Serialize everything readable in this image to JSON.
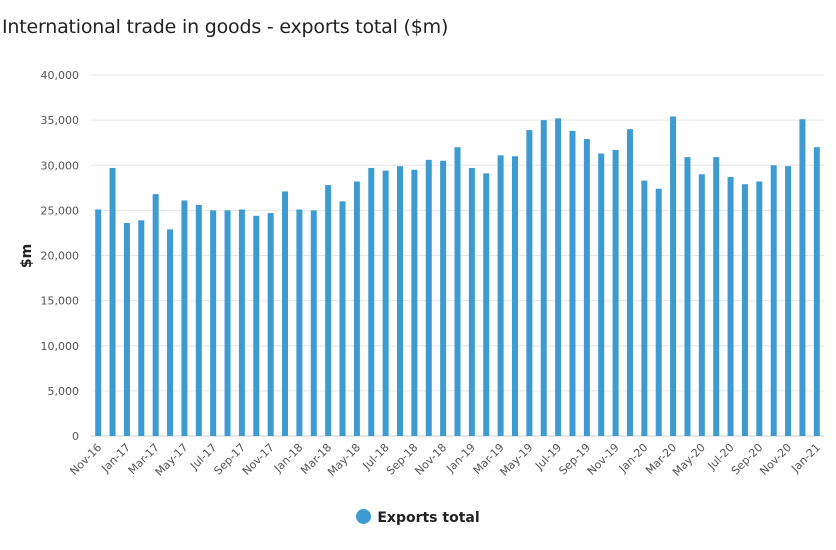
{
  "chart_data": {
    "type": "bar",
    "title": "International trade in goods - exports total ($m)",
    "xlabel": "",
    "ylabel": "$m",
    "ylim": [
      0,
      40000
    ],
    "y_ticks": [
      0,
      5000,
      10000,
      15000,
      20000,
      25000,
      30000,
      35000,
      40000
    ],
    "y_tick_labels": [
      "0",
      "5,000",
      "10,000",
      "15,000",
      "20,000",
      "25,000",
      "30,000",
      "35,000",
      "40,000"
    ],
    "grid": true,
    "legend_position": "bottom",
    "series_color": "#3d9bd1",
    "series": [
      {
        "name": "Exports total",
        "values": [
          25100,
          29700,
          23600,
          23900,
          26800,
          22900,
          26100,
          25600,
          25000,
          25000,
          25100,
          24400,
          24700,
          27100,
          25100,
          25000,
          27800,
          26000,
          28200,
          29700,
          29400,
          29900,
          29500,
          30600,
          30500,
          32000,
          29700,
          29100,
          31100,
          31000,
          33900,
          35000,
          35200,
          33800,
          32900,
          31300,
          31700,
          34000,
          28300,
          27400,
          35400,
          30900,
          29000,
          30900,
          28700,
          27900,
          28200,
          30000,
          29900,
          35100,
          32000
        ]
      }
    ],
    "categories": [
      "Nov-16",
      "Dec-16",
      "Jan-17",
      "Feb-17",
      "Mar-17",
      "Apr-17",
      "May-17",
      "Jun-17",
      "Jul-17",
      "Aug-17",
      "Sep-17",
      "Oct-17",
      "Nov-17",
      "Dec-17",
      "Jan-18",
      "Feb-18",
      "Mar-18",
      "Apr-18",
      "May-18",
      "Jun-18",
      "Jul-18",
      "Aug-18",
      "Sep-18",
      "Oct-18",
      "Nov-18",
      "Dec-18",
      "Jan-19",
      "Feb-19",
      "Mar-19",
      "Apr-19",
      "May-19",
      "Jun-19",
      "Jul-19",
      "Aug-19",
      "Sep-19",
      "Oct-19",
      "Nov-19",
      "Dec-19",
      "Jan-20",
      "Feb-20",
      "Mar-20",
      "Apr-20",
      "May-20",
      "Jun-20",
      "Jul-20",
      "Aug-20",
      "Sep-20",
      "Oct-20",
      "Nov-20",
      "Dec-20",
      "Jan-21"
    ],
    "x_tick_labels": [
      "Nov-16",
      "Jan-17",
      "Mar-17",
      "May-17",
      "Jul-17",
      "Sep-17",
      "Nov-17",
      "Jan-18",
      "Mar-18",
      "May-18",
      "Jul-18",
      "Sep-18",
      "Nov-18",
      "Jan-19",
      "Mar-19",
      "May-19",
      "Jul-19",
      "Sep-19",
      "Nov-19",
      "Jan-20",
      "Mar-20",
      "May-20",
      "Jul-20",
      "Sep-20",
      "Nov-20",
      "Jan-21"
    ]
  }
}
